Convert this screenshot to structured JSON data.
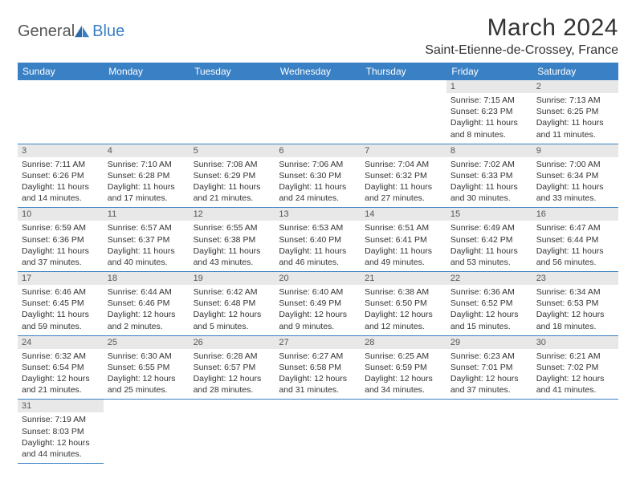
{
  "brand": {
    "part1": "General",
    "part2": "Blue"
  },
  "title": "March 2024",
  "location": "Saint-Etienne-de-Crossey, France",
  "headers": [
    "Sunday",
    "Monday",
    "Tuesday",
    "Wednesday",
    "Thursday",
    "Friday",
    "Saturday"
  ],
  "colors": {
    "accent": "#3a80c4",
    "header_bg": "#3a80c4",
    "header_text": "#ffffff",
    "daynum_bg": "#e8e8e8",
    "text": "#333333"
  },
  "weeks": [
    [
      {
        "n": "",
        "sr": "",
        "ss": "",
        "dl": ""
      },
      {
        "n": "",
        "sr": "",
        "ss": "",
        "dl": ""
      },
      {
        "n": "",
        "sr": "",
        "ss": "",
        "dl": ""
      },
      {
        "n": "",
        "sr": "",
        "ss": "",
        "dl": ""
      },
      {
        "n": "",
        "sr": "",
        "ss": "",
        "dl": ""
      },
      {
        "n": "1",
        "sr": "Sunrise: 7:15 AM",
        "ss": "Sunset: 6:23 PM",
        "dl": "Daylight: 11 hours and 8 minutes."
      },
      {
        "n": "2",
        "sr": "Sunrise: 7:13 AM",
        "ss": "Sunset: 6:25 PM",
        "dl": "Daylight: 11 hours and 11 minutes."
      }
    ],
    [
      {
        "n": "3",
        "sr": "Sunrise: 7:11 AM",
        "ss": "Sunset: 6:26 PM",
        "dl": "Daylight: 11 hours and 14 minutes."
      },
      {
        "n": "4",
        "sr": "Sunrise: 7:10 AM",
        "ss": "Sunset: 6:28 PM",
        "dl": "Daylight: 11 hours and 17 minutes."
      },
      {
        "n": "5",
        "sr": "Sunrise: 7:08 AM",
        "ss": "Sunset: 6:29 PM",
        "dl": "Daylight: 11 hours and 21 minutes."
      },
      {
        "n": "6",
        "sr": "Sunrise: 7:06 AM",
        "ss": "Sunset: 6:30 PM",
        "dl": "Daylight: 11 hours and 24 minutes."
      },
      {
        "n": "7",
        "sr": "Sunrise: 7:04 AM",
        "ss": "Sunset: 6:32 PM",
        "dl": "Daylight: 11 hours and 27 minutes."
      },
      {
        "n": "8",
        "sr": "Sunrise: 7:02 AM",
        "ss": "Sunset: 6:33 PM",
        "dl": "Daylight: 11 hours and 30 minutes."
      },
      {
        "n": "9",
        "sr": "Sunrise: 7:00 AM",
        "ss": "Sunset: 6:34 PM",
        "dl": "Daylight: 11 hours and 33 minutes."
      }
    ],
    [
      {
        "n": "10",
        "sr": "Sunrise: 6:59 AM",
        "ss": "Sunset: 6:36 PM",
        "dl": "Daylight: 11 hours and 37 minutes."
      },
      {
        "n": "11",
        "sr": "Sunrise: 6:57 AM",
        "ss": "Sunset: 6:37 PM",
        "dl": "Daylight: 11 hours and 40 minutes."
      },
      {
        "n": "12",
        "sr": "Sunrise: 6:55 AM",
        "ss": "Sunset: 6:38 PM",
        "dl": "Daylight: 11 hours and 43 minutes."
      },
      {
        "n": "13",
        "sr": "Sunrise: 6:53 AM",
        "ss": "Sunset: 6:40 PM",
        "dl": "Daylight: 11 hours and 46 minutes."
      },
      {
        "n": "14",
        "sr": "Sunrise: 6:51 AM",
        "ss": "Sunset: 6:41 PM",
        "dl": "Daylight: 11 hours and 49 minutes."
      },
      {
        "n": "15",
        "sr": "Sunrise: 6:49 AM",
        "ss": "Sunset: 6:42 PM",
        "dl": "Daylight: 11 hours and 53 minutes."
      },
      {
        "n": "16",
        "sr": "Sunrise: 6:47 AM",
        "ss": "Sunset: 6:44 PM",
        "dl": "Daylight: 11 hours and 56 minutes."
      }
    ],
    [
      {
        "n": "17",
        "sr": "Sunrise: 6:46 AM",
        "ss": "Sunset: 6:45 PM",
        "dl": "Daylight: 11 hours and 59 minutes."
      },
      {
        "n": "18",
        "sr": "Sunrise: 6:44 AM",
        "ss": "Sunset: 6:46 PM",
        "dl": "Daylight: 12 hours and 2 minutes."
      },
      {
        "n": "19",
        "sr": "Sunrise: 6:42 AM",
        "ss": "Sunset: 6:48 PM",
        "dl": "Daylight: 12 hours and 5 minutes."
      },
      {
        "n": "20",
        "sr": "Sunrise: 6:40 AM",
        "ss": "Sunset: 6:49 PM",
        "dl": "Daylight: 12 hours and 9 minutes."
      },
      {
        "n": "21",
        "sr": "Sunrise: 6:38 AM",
        "ss": "Sunset: 6:50 PM",
        "dl": "Daylight: 12 hours and 12 minutes."
      },
      {
        "n": "22",
        "sr": "Sunrise: 6:36 AM",
        "ss": "Sunset: 6:52 PM",
        "dl": "Daylight: 12 hours and 15 minutes."
      },
      {
        "n": "23",
        "sr": "Sunrise: 6:34 AM",
        "ss": "Sunset: 6:53 PM",
        "dl": "Daylight: 12 hours and 18 minutes."
      }
    ],
    [
      {
        "n": "24",
        "sr": "Sunrise: 6:32 AM",
        "ss": "Sunset: 6:54 PM",
        "dl": "Daylight: 12 hours and 21 minutes."
      },
      {
        "n": "25",
        "sr": "Sunrise: 6:30 AM",
        "ss": "Sunset: 6:55 PM",
        "dl": "Daylight: 12 hours and 25 minutes."
      },
      {
        "n": "26",
        "sr": "Sunrise: 6:28 AM",
        "ss": "Sunset: 6:57 PM",
        "dl": "Daylight: 12 hours and 28 minutes."
      },
      {
        "n": "27",
        "sr": "Sunrise: 6:27 AM",
        "ss": "Sunset: 6:58 PM",
        "dl": "Daylight: 12 hours and 31 minutes."
      },
      {
        "n": "28",
        "sr": "Sunrise: 6:25 AM",
        "ss": "Sunset: 6:59 PM",
        "dl": "Daylight: 12 hours and 34 minutes."
      },
      {
        "n": "29",
        "sr": "Sunrise: 6:23 AM",
        "ss": "Sunset: 7:01 PM",
        "dl": "Daylight: 12 hours and 37 minutes."
      },
      {
        "n": "30",
        "sr": "Sunrise: 6:21 AM",
        "ss": "Sunset: 7:02 PM",
        "dl": "Daylight: 12 hours and 41 minutes."
      }
    ],
    [
      {
        "n": "31",
        "sr": "Sunrise: 7:19 AM",
        "ss": "Sunset: 8:03 PM",
        "dl": "Daylight: 12 hours and 44 minutes."
      },
      {
        "n": "",
        "sr": "",
        "ss": "",
        "dl": ""
      },
      {
        "n": "",
        "sr": "",
        "ss": "",
        "dl": ""
      },
      {
        "n": "",
        "sr": "",
        "ss": "",
        "dl": ""
      },
      {
        "n": "",
        "sr": "",
        "ss": "",
        "dl": ""
      },
      {
        "n": "",
        "sr": "",
        "ss": "",
        "dl": ""
      },
      {
        "n": "",
        "sr": "",
        "ss": "",
        "dl": ""
      }
    ]
  ]
}
